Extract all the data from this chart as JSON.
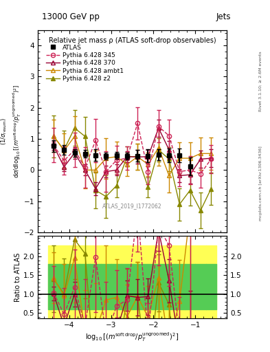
{
  "title_top": "13000 GeV pp",
  "title_right": "Jets",
  "plot_title": "Relative jet mass ρ (ATLAS soft-drop observables)",
  "watermark": "ATLAS_2019_I1772062",
  "rivet_label": "Rivet 3.1.10; ≥ 2.6M events",
  "arxiv_label": "mcplots.cern.ch [arXiv:1306.3436]",
  "ylabel_ratio": "Ratio to ATLAS",
  "xlim": [
    -4.75,
    -0.25
  ],
  "ylim_main": [
    -2.0,
    4.5
  ],
  "ylim_ratio": [
    0.35,
    2.55
  ],
  "yticks_main": [
    -2,
    -1,
    0,
    1,
    2,
    3,
    4
  ],
  "yticks_ratio": [
    0.5,
    1.0,
    1.5,
    2.0
  ],
  "xticks": [
    -4,
    -3,
    -2,
    -1
  ],
  "x_centers": [
    -4.375,
    -4.125,
    -3.875,
    -3.625,
    -3.375,
    -3.125,
    -2.875,
    -2.625,
    -2.375,
    -2.125,
    -1.875,
    -1.625,
    -1.375,
    -1.125,
    -0.875,
    -0.625
  ],
  "x_edges": [
    -4.5,
    -4.25,
    -4.0,
    -3.75,
    -3.5,
    -3.25,
    -3.0,
    -2.75,
    -2.5,
    -2.25,
    -2.0,
    -1.75,
    -1.5,
    -1.25,
    -1.0,
    -0.75,
    -0.5
  ],
  "atlas_y": [
    0.77,
    0.65,
    0.55,
    0.52,
    0.48,
    0.45,
    0.47,
    0.45,
    0.46,
    0.46,
    0.5,
    0.48,
    0.47,
    0.12,
    null,
    null
  ],
  "atlas_yerr": [
    0.18,
    0.15,
    0.12,
    0.12,
    0.18,
    0.12,
    0.12,
    0.12,
    0.18,
    0.2,
    0.18,
    0.22,
    0.22,
    0.28,
    null,
    null
  ],
  "p345_y": [
    0.8,
    0.3,
    0.65,
    0.08,
    0.95,
    -0.05,
    0.32,
    0.38,
    1.5,
    -0.05,
    1.4,
    1.1,
    -0.05,
    0.0,
    -0.12,
    0.35
  ],
  "p345_yerr": [
    0.55,
    0.45,
    0.55,
    0.65,
    0.7,
    0.65,
    0.45,
    0.38,
    0.52,
    0.4,
    0.52,
    0.52,
    0.48,
    0.45,
    0.45,
    0.45
  ],
  "p370_y": [
    0.78,
    0.1,
    0.55,
    0.0,
    -0.6,
    -0.05,
    0.0,
    0.43,
    0.42,
    0.43,
    1.35,
    0.65,
    -0.18,
    -0.15,
    0.35,
    0.38
  ],
  "p370_yerr": [
    0.14,
    0.13,
    0.18,
    0.18,
    0.22,
    0.18,
    0.18,
    0.18,
    0.22,
    0.22,
    0.28,
    0.28,
    0.22,
    0.28,
    0.28,
    0.28
  ],
  "ambt1_y": [
    1.1,
    0.62,
    1.08,
    0.0,
    0.0,
    0.38,
    0.43,
    0.18,
    0.43,
    0.18,
    0.72,
    -0.18,
    0.38,
    0.38,
    0.53,
    0.53
  ],
  "ambt1_yerr": [
    0.52,
    0.55,
    0.65,
    0.58,
    0.62,
    0.65,
    0.48,
    0.38,
    0.42,
    0.38,
    0.58,
    0.55,
    0.52,
    0.52,
    0.52,
    0.52
  ],
  "z2_y": [
    1.08,
    0.65,
    1.35,
    1.08,
    -0.65,
    -0.85,
    -0.5,
    0.43,
    0.43,
    -0.55,
    0.65,
    0.35,
    -1.1,
    -0.65,
    -1.3,
    -0.6
  ],
  "z2_yerr": [
    0.68,
    0.62,
    0.58,
    0.62,
    0.58,
    0.68,
    0.38,
    0.32,
    0.42,
    0.32,
    0.38,
    0.38,
    0.52,
    0.48,
    0.58,
    0.52
  ],
  "color_atlas": "#000000",
  "color_345": "#cc2255",
  "color_370": "#990033",
  "color_ambt1": "#cc8800",
  "color_z2": "#888800",
  "ratio_band_yellow": [
    0.3,
    2.3
  ],
  "ratio_band_green": [
    0.6,
    1.8
  ]
}
